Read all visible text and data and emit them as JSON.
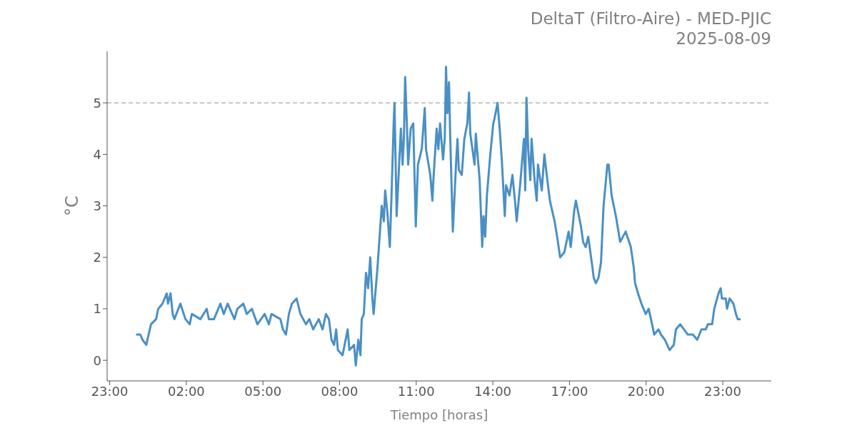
{
  "chart_data": {
    "type": "line",
    "title": "DeltaT (Filtro-Aire) - MED-PJIC",
    "subtitle": "2025-08-09",
    "xlabel": "Tiempo [horas]",
    "ylabel": "°C",
    "xlim": [
      "2025-08-08T22:54",
      "2025-08-10T00:54"
    ],
    "xticks": [
      {
        "value": "2025-08-08T23:00",
        "label": "23:00"
      },
      {
        "value": "2025-08-09T02:00",
        "label": "02:00"
      },
      {
        "value": "2025-08-09T05:00",
        "label": "05:00"
      },
      {
        "value": "2025-08-09T08:00",
        "label": "08:00"
      },
      {
        "value": "2025-08-09T11:00",
        "label": "11:00"
      },
      {
        "value": "2025-08-09T14:00",
        "label": "14:00"
      },
      {
        "value": "2025-08-09T17:00",
        "label": "17:00"
      },
      {
        "value": "2025-08-09T20:00",
        "label": "20:00"
      },
      {
        "value": "2025-08-09T23:00",
        "label": "23:00"
      }
    ],
    "ylim": [
      -0.4,
      6.0
    ],
    "yticks": [
      0,
      1,
      2,
      3,
      4,
      5
    ],
    "marker": "none",
    "line_style": "solid",
    "ref_lines": [
      {
        "axis": "y",
        "value": 5,
        "label": null,
        "color": "#b4b4b4",
        "line_style": "dashed"
      }
    ],
    "x": [
      "2025-08-09T00:02",
      "2025-08-09T00:12",
      "2025-08-09T00:17",
      "2025-08-09T00:26",
      "2025-08-09T00:37",
      "2025-08-09T00:49",
      "2025-08-09T00:54",
      "2025-08-09T01:04",
      "2025-08-09T01:14",
      "2025-08-09T01:17",
      "2025-08-09T01:23",
      "2025-08-09T01:28",
      "2025-08-09T01:32",
      "2025-08-09T01:46",
      "2025-08-09T01:58",
      "2025-08-09T02:08",
      "2025-08-09T02:13",
      "2025-08-09T02:33",
      "2025-08-09T02:48",
      "2025-08-09T02:53",
      "2025-08-09T03:05",
      "2025-08-09T03:20",
      "2025-08-09T03:28",
      "2025-08-09T03:37",
      "2025-08-09T03:53",
      "2025-08-09T04:00",
      "2025-08-09T04:14",
      "2025-08-09T04:22",
      "2025-08-09T04:34",
      "2025-08-09T04:47",
      "2025-08-09T05:04",
      "2025-08-09T05:14",
      "2025-08-09T05:20",
      "2025-08-09T05:41",
      "2025-08-09T05:47",
      "2025-08-09T05:54",
      "2025-08-09T06:01",
      "2025-08-09T06:08",
      "2025-08-09T06:19",
      "2025-08-09T06:28",
      "2025-08-09T06:41",
      "2025-08-09T06:49",
      "2025-08-09T06:58",
      "2025-08-09T07:11",
      "2025-08-09T07:20",
      "2025-08-09T07:28",
      "2025-08-09T07:35",
      "2025-08-09T07:41",
      "2025-08-09T07:47",
      "2025-08-09T07:52",
      "2025-08-09T07:56",
      "2025-08-09T08:07",
      "2025-08-09T08:19",
      "2025-08-09T08:23",
      "2025-08-09T08:34",
      "2025-08-09T08:38",
      "2025-08-09T08:44",
      "2025-08-09T08:49",
      "2025-08-09T08:52",
      "2025-08-09T08:57",
      "2025-08-09T09:02",
      "2025-08-09T09:07",
      "2025-08-09T09:12",
      "2025-08-09T09:17",
      "2025-08-09T09:20",
      "2025-08-09T09:29",
      "2025-08-09T09:34",
      "2025-08-09T09:39",
      "2025-08-09T09:44",
      "2025-08-09T09:47",
      "2025-08-09T09:52",
      "2025-08-09T09:58",
      "2025-08-09T10:02",
      "2025-08-09T10:07",
      "2025-08-09T10:09",
      "2025-08-09T10:14",
      "2025-08-09T10:21",
      "2025-08-09T10:24",
      "2025-08-09T10:28",
      "2025-08-09T10:31",
      "2025-08-09T10:34",
      "2025-08-09T10:38",
      "2025-08-09T10:41",
      "2025-08-09T10:47",
      "2025-08-09T10:53",
      "2025-08-09T10:59",
      "2025-08-09T11:04",
      "2025-08-09T11:13",
      "2025-08-09T11:20",
      "2025-08-09T11:23",
      "2025-08-09T11:33",
      "2025-08-09T11:38",
      "2025-08-09T11:41",
      "2025-08-09T11:48",
      "2025-08-09T11:52",
      "2025-08-09T11:56",
      "2025-08-09T12:03",
      "2025-08-09T12:07",
      "2025-08-09T12:10",
      "2025-08-09T12:13",
      "2025-08-09T12:17",
      "2025-08-09T12:20",
      "2025-08-09T12:26",
      "2025-08-09T12:34",
      "2025-08-09T12:37",
      "2025-08-09T12:40",
      "2025-08-09T12:47",
      "2025-08-09T12:53",
      "2025-08-09T13:00",
      "2025-08-09T13:04",
      "2025-08-09T13:07",
      "2025-08-09T13:17",
      "2025-08-09T13:20",
      "2025-08-09T13:29",
      "2025-08-09T13:35",
      "2025-08-09T13:38",
      "2025-08-09T13:42",
      "2025-08-09T13:46",
      "2025-08-09T13:54",
      "2025-08-09T14:01",
      "2025-08-09T14:04",
      "2025-08-09T14:11",
      "2025-08-09T14:16",
      "2025-08-09T14:21",
      "2025-08-09T14:28",
      "2025-08-09T14:31",
      "2025-08-09T14:39",
      "2025-08-09T14:46",
      "2025-08-09T14:53",
      "2025-08-09T14:56",
      "2025-08-09T15:04",
      "2025-08-09T15:13",
      "2025-08-09T15:16",
      "2025-08-09T15:19",
      "2025-08-09T15:23",
      "2025-08-09T15:28",
      "2025-08-09T15:31",
      "2025-08-09T15:38",
      "2025-08-09T15:43",
      "2025-08-09T15:46",
      "2025-08-09T15:55",
      "2025-08-09T16:01",
      "2025-08-09T16:08",
      "2025-08-09T16:14",
      "2025-08-09T16:25",
      "2025-08-09T16:31",
      "2025-08-09T16:38",
      "2025-08-09T16:48",
      "2025-08-09T16:58",
      "2025-08-09T17:03",
      "2025-08-09T17:11",
      "2025-08-09T17:15",
      "2025-08-09T17:27",
      "2025-08-09T17:32",
      "2025-08-09T17:38",
      "2025-08-09T17:44",
      "2025-08-09T17:54",
      "2025-08-09T17:57",
      "2025-08-09T18:02",
      "2025-08-09T18:08",
      "2025-08-09T18:14",
      "2025-08-09T18:20",
      "2025-08-09T18:29",
      "2025-08-09T18:32",
      "2025-08-09T18:39",
      "2025-08-09T18:49",
      "2025-08-09T18:59",
      "2025-08-09T19:12",
      "2025-08-09T19:24",
      "2025-08-09T19:31",
      "2025-08-09T19:34",
      "2025-08-09T19:41",
      "2025-08-09T19:49",
      "2025-08-09T19:59",
      "2025-08-09T20:06",
      "2025-08-09T20:14",
      "2025-08-09T20:19",
      "2025-08-09T20:29",
      "2025-08-09T20:35",
      "2025-08-09T20:44",
      "2025-08-09T20:55",
      "2025-08-09T21:05",
      "2025-08-09T21:10",
      "2025-08-09T21:20",
      "2025-08-09T21:38",
      "2025-08-09T21:50",
      "2025-08-09T22:00",
      "2025-08-09T22:10",
      "2025-08-09T22:20",
      "2025-08-09T22:25",
      "2025-08-09T22:35",
      "2025-08-09T22:40",
      "2025-08-09T22:50",
      "2025-08-09T22:55",
      "2025-08-09T22:58",
      "2025-08-09T23:07",
      "2025-08-09T23:10",
      "2025-08-09T23:16",
      "2025-08-09T23:25",
      "2025-08-09T23:31",
      "2025-08-09T23:35",
      "2025-08-09T23:42"
    ],
    "series": [
      {
        "color": "#4a90c4",
        "values": [
          0.5,
          0.5,
          0.4,
          0.3,
          0.7,
          0.8,
          1.0,
          1.1,
          1.3,
          1.1,
          1.3,
          0.9,
          0.8,
          1.1,
          0.8,
          0.7,
          0.9,
          0.8,
          1.0,
          0.8,
          0.8,
          1.1,
          0.9,
          1.1,
          0.8,
          1.0,
          1.1,
          0.9,
          1.0,
          0.7,
          0.9,
          0.7,
          0.9,
          0.8,
          0.6,
          0.5,
          0.9,
          1.1,
          1.2,
          0.9,
          0.7,
          0.8,
          0.6,
          0.8,
          0.6,
          0.9,
          0.8,
          0.4,
          0.3,
          0.6,
          0.2,
          0.1,
          0.6,
          0.2,
          0.3,
          -0.1,
          0.4,
          0.1,
          0.8,
          0.9,
          1.7,
          1.4,
          2.0,
          1.2,
          0.9,
          1.8,
          2.4,
          3.0,
          2.7,
          3.3,
          2.9,
          2.2,
          3.2,
          4.6,
          5.0,
          2.8,
          4.0,
          4.5,
          3.8,
          4.3,
          5.5,
          4.6,
          3.8,
          4.5,
          4.6,
          2.6,
          3.8,
          4.1,
          4.9,
          4.1,
          3.6,
          3.1,
          3.6,
          4.5,
          4.1,
          4.6,
          3.9,
          4.3,
          5.7,
          4.8,
          5.4,
          4.3,
          2.5,
          3.9,
          4.3,
          3.7,
          3.6,
          4.3,
          4.6,
          5.2,
          4.4,
          3.8,
          4.4,
          3.5,
          2.2,
          2.8,
          2.4,
          3.2,
          4.0,
          4.6,
          4.7,
          5.0,
          4.5,
          3.9,
          2.8,
          3.4,
          3.2,
          3.6,
          3.0,
          2.7,
          3.4,
          4.3,
          3.3,
          5.1,
          4.1,
          3.5,
          4.3,
          3.5,
          3.1,
          3.8,
          3.3,
          4.0,
          3.5,
          3.1,
          2.7,
          2.4,
          2.0,
          2.1,
          2.5,
          2.2,
          2.9,
          3.1,
          2.6,
          2.3,
          2.2,
          2.4,
          1.8,
          1.6,
          1.5,
          1.6,
          1.9,
          3.0,
          3.8,
          3.8,
          3.2,
          2.8,
          2.3,
          2.5,
          2.2,
          1.8,
          1.5,
          1.3,
          1.1,
          0.9,
          1.0,
          0.7,
          0.5,
          0.6,
          0.5,
          0.4,
          0.2,
          0.3,
          0.6,
          0.7,
          0.5,
          0.5,
          0.4,
          0.6,
          0.6,
          0.7,
          0.7,
          1.0,
          1.3,
          1.4,
          1.2,
          1.2,
          1.0,
          1.2,
          1.1,
          0.9,
          0.8,
          0.8
        ]
      }
    ]
  }
}
